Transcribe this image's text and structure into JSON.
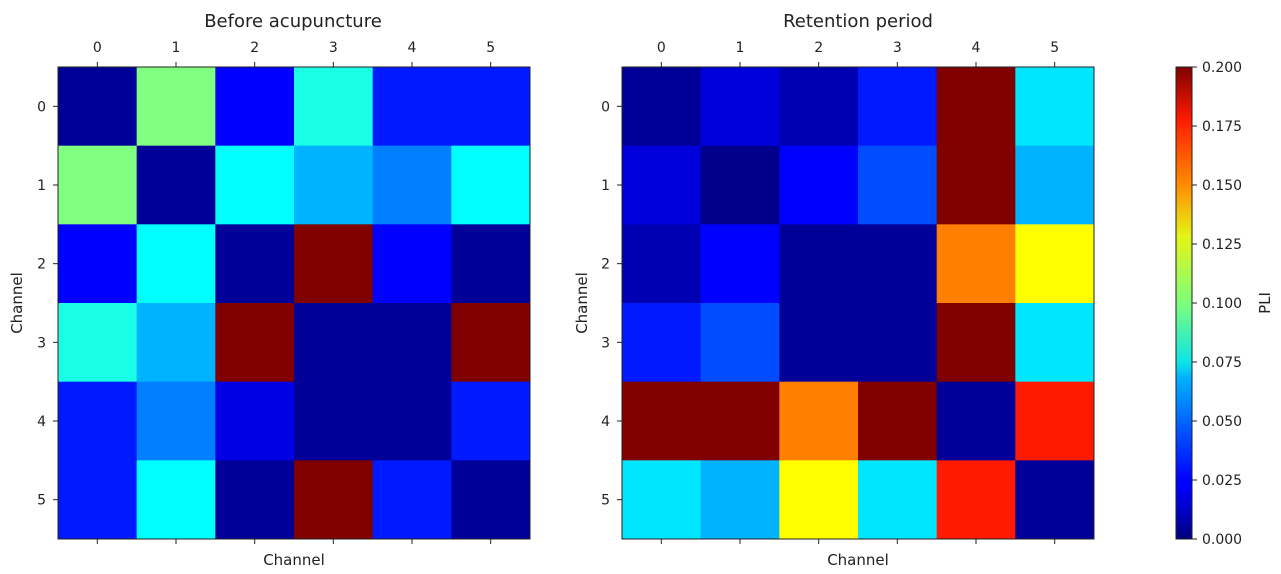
{
  "chart_data": [
    {
      "type": "heatmap",
      "title": "Before acupuncture",
      "xlabel": "Channel",
      "ylabel": "Channel",
      "x_ticks": [
        "0",
        "1",
        "2",
        "3",
        "4",
        "5"
      ],
      "y_ticks": [
        "0",
        "1",
        "2",
        "3",
        "4",
        "5"
      ],
      "values": [
        [
          0.005,
          0.1,
          0.025,
          0.08,
          0.03,
          0.03
        ],
        [
          0.1,
          0.005,
          0.075,
          0.06,
          0.05,
          0.075
        ],
        [
          0.025,
          0.075,
          0.005,
          0.2,
          0.025,
          0.005
        ],
        [
          0.08,
          0.06,
          0.2,
          0.005,
          0.005,
          0.2
        ],
        [
          0.03,
          0.05,
          0.02,
          0.005,
          0.005,
          0.03
        ],
        [
          0.03,
          0.075,
          0.005,
          0.2,
          0.03,
          0.005
        ]
      ]
    },
    {
      "type": "heatmap",
      "title": "Retention period",
      "xlabel": "Channel",
      "ylabel": "Channel",
      "x_ticks": [
        "0",
        "1",
        "2",
        "3",
        "4",
        "5"
      ],
      "y_ticks": [
        "0",
        "1",
        "2",
        "3",
        "4",
        "5"
      ],
      "values": [
        [
          0.005,
          0.018,
          0.01,
          0.03,
          0.2,
          0.07
        ],
        [
          0.018,
          0.002,
          0.025,
          0.04,
          0.2,
          0.06
        ],
        [
          0.01,
          0.025,
          0.005,
          0.005,
          0.15,
          0.125
        ],
        [
          0.03,
          0.04,
          0.005,
          0.005,
          0.2,
          0.07
        ],
        [
          0.2,
          0.2,
          0.15,
          0.2,
          0.005,
          0.17
        ],
        [
          0.07,
          0.06,
          0.125,
          0.07,
          0.17,
          0.005
        ]
      ]
    }
  ],
  "colorbar": {
    "label": "PLI",
    "colormap": "jet",
    "vmin": 0.0,
    "vmax": 0.2,
    "ticks": [
      "0.000",
      "0.025",
      "0.050",
      "0.075",
      "0.100",
      "0.125",
      "0.150",
      "0.175",
      "0.200"
    ]
  }
}
